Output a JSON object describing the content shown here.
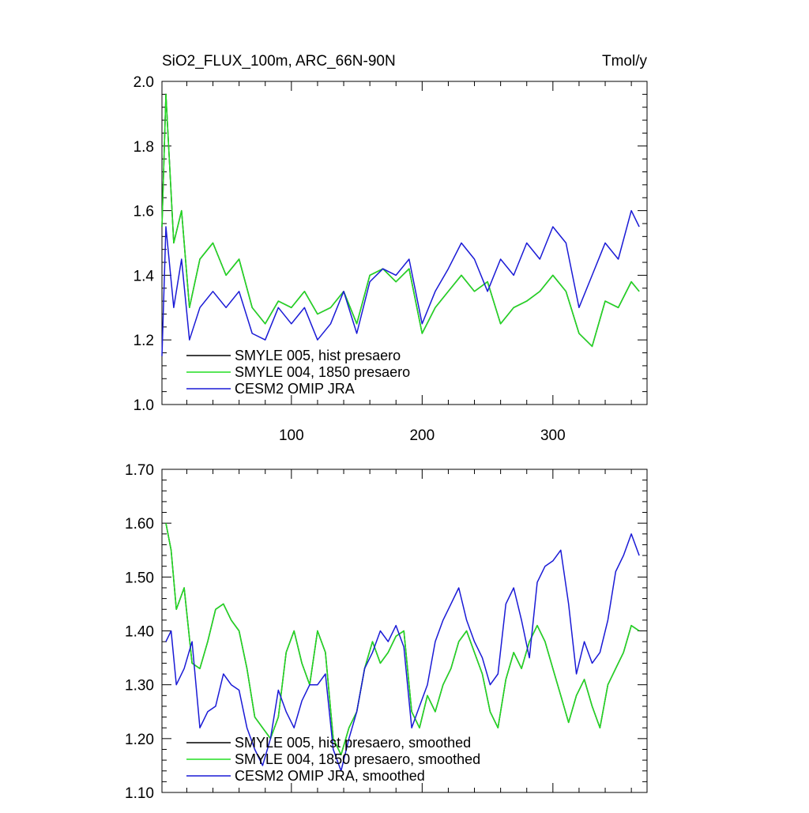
{
  "colors": {
    "black": "#000000",
    "green": "#22dd22",
    "blue": "#1a1ad6"
  },
  "chart_data": [
    {
      "type": "line",
      "title": "SiO2_FLUX_100m, ARC_66N-90N",
      "units": "Tmol/y",
      "xlim": [
        1,
        372
      ],
      "ylim": [
        1.0,
        2.0
      ],
      "xticks": [
        100,
        200,
        300
      ],
      "xtick_labels": [
        "100",
        "200",
        "300"
      ],
      "yticks": [
        1.0,
        1.2,
        1.4,
        1.6,
        1.8,
        2.0
      ],
      "ytick_labels": [
        "1.0",
        "1.2",
        "1.4",
        "1.6",
        "1.8",
        "2.0"
      ],
      "legend": [
        "SMYLE 005, hist presaero",
        "SMYLE 004, 1850 presaero",
        "CESM2 OMIP JRA"
      ],
      "legend_position": "bottom-left",
      "series": [
        {
          "name": "SMYLE 005, hist presaero",
          "color_key": "black",
          "x": [
            1,
            4,
            10,
            16,
            22,
            30,
            40,
            50,
            60,
            70,
            80,
            90,
            100,
            110,
            120,
            130,
            140,
            150,
            160,
            170,
            180,
            190,
            200,
            210,
            220,
            230,
            240,
            250,
            260,
            270,
            280,
            290,
            300,
            310,
            320,
            330,
            340,
            350,
            360,
            366
          ],
          "values": [
            1.55,
            1.96,
            1.5,
            1.6,
            1.3,
            1.45,
            1.5,
            1.4,
            1.45,
            1.3,
            1.25,
            1.32,
            1.3,
            1.35,
            1.28,
            1.3,
            1.35,
            1.25,
            1.4,
            1.42,
            1.38,
            1.42,
            1.22,
            1.3,
            1.35,
            1.4,
            1.35,
            1.38,
            1.25,
            1.3,
            1.32,
            1.35,
            1.4,
            1.35,
            1.22,
            1.18,
            1.32,
            1.3,
            1.38,
            1.35
          ]
        },
        {
          "name": "SMYLE 004, 1850 presaero",
          "color_key": "green",
          "x": [
            1,
            4,
            10,
            16,
            22,
            30,
            40,
            50,
            60,
            70,
            80,
            90,
            100,
            110,
            120,
            130,
            140,
            150,
            160,
            170,
            180,
            190,
            200,
            210,
            220,
            230,
            240,
            250,
            260,
            270,
            280,
            290,
            300,
            310,
            320,
            330,
            340,
            350,
            360,
            366
          ],
          "values": [
            1.55,
            1.96,
            1.5,
            1.6,
            1.3,
            1.45,
            1.5,
            1.4,
            1.45,
            1.3,
            1.25,
            1.32,
            1.3,
            1.35,
            1.28,
            1.3,
            1.35,
            1.25,
            1.4,
            1.42,
            1.38,
            1.42,
            1.22,
            1.3,
            1.35,
            1.4,
            1.35,
            1.38,
            1.25,
            1.3,
            1.32,
            1.35,
            1.4,
            1.35,
            1.22,
            1.18,
            1.32,
            1.3,
            1.38,
            1.35
          ]
        },
        {
          "name": "CESM2 OMIP JRA",
          "color_key": "blue",
          "x": [
            1,
            4,
            10,
            16,
            22,
            30,
            40,
            50,
            60,
            70,
            80,
            90,
            100,
            110,
            120,
            130,
            140,
            150,
            160,
            170,
            180,
            190,
            200,
            210,
            220,
            230,
            240,
            250,
            260,
            270,
            280,
            290,
            300,
            310,
            320,
            330,
            340,
            350,
            360,
            366
          ],
          "values": [
            1.15,
            1.55,
            1.3,
            1.45,
            1.2,
            1.3,
            1.35,
            1.3,
            1.35,
            1.22,
            1.2,
            1.3,
            1.25,
            1.3,
            1.2,
            1.25,
            1.35,
            1.22,
            1.38,
            1.42,
            1.4,
            1.45,
            1.25,
            1.35,
            1.42,
            1.5,
            1.45,
            1.35,
            1.45,
            1.4,
            1.5,
            1.45,
            1.55,
            1.5,
            1.3,
            1.4,
            1.5,
            1.45,
            1.6,
            1.55
          ]
        }
      ]
    },
    {
      "type": "line",
      "title": "",
      "xlim": [
        1,
        372
      ],
      "ylim": [
        1.1,
        1.7
      ],
      "xticks": [
        100,
        200,
        300
      ],
      "xtick_labels": [],
      "yticks": [
        1.1,
        1.2,
        1.3,
        1.4,
        1.5,
        1.6,
        1.7
      ],
      "ytick_labels": [
        "1.10",
        "1.20",
        "1.30",
        "1.40",
        "1.50",
        "1.60",
        "1.70"
      ],
      "legend": [
        "SMYLE 005, hist presaero, smoothed",
        "SMYLE 004, 1850 presaero, smoothed",
        "CESM2 OMIP JRA, smoothed"
      ],
      "legend_position": "bottom-left",
      "series": [
        {
          "name": "SMYLE 005, hist presaero, smoothed",
          "color_key": "black",
          "x": [
            4,
            8,
            12,
            18,
            24,
            30,
            36,
            42,
            48,
            54,
            60,
            66,
            72,
            78,
            84,
            90,
            96,
            102,
            108,
            114,
            120,
            126,
            132,
            138,
            144,
            150,
            156,
            162,
            168,
            174,
            180,
            186,
            192,
            198,
            204,
            210,
            216,
            222,
            228,
            234,
            240,
            246,
            252,
            258,
            264,
            270,
            276,
            282,
            288,
            294,
            300,
            306,
            312,
            318,
            324,
            330,
            336,
            342,
            348,
            354,
            360,
            366
          ],
          "values": [
            1.6,
            1.55,
            1.44,
            1.48,
            1.34,
            1.33,
            1.38,
            1.44,
            1.45,
            1.42,
            1.4,
            1.33,
            1.24,
            1.22,
            1.2,
            1.24,
            1.36,
            1.4,
            1.34,
            1.3,
            1.4,
            1.36,
            1.2,
            1.17,
            1.22,
            1.25,
            1.33,
            1.38,
            1.34,
            1.36,
            1.39,
            1.4,
            1.25,
            1.22,
            1.28,
            1.25,
            1.3,
            1.33,
            1.38,
            1.4,
            1.36,
            1.32,
            1.25,
            1.22,
            1.31,
            1.36,
            1.33,
            1.38,
            1.41,
            1.38,
            1.33,
            1.28,
            1.23,
            1.28,
            1.31,
            1.26,
            1.22,
            1.3,
            1.33,
            1.36,
            1.41,
            1.4
          ]
        },
        {
          "name": "SMYLE 004, 1850 presaero, smoothed",
          "color_key": "green",
          "x": [
            4,
            8,
            12,
            18,
            24,
            30,
            36,
            42,
            48,
            54,
            60,
            66,
            72,
            78,
            84,
            90,
            96,
            102,
            108,
            114,
            120,
            126,
            132,
            138,
            144,
            150,
            156,
            162,
            168,
            174,
            180,
            186,
            192,
            198,
            204,
            210,
            216,
            222,
            228,
            234,
            240,
            246,
            252,
            258,
            264,
            270,
            276,
            282,
            288,
            294,
            300,
            306,
            312,
            318,
            324,
            330,
            336,
            342,
            348,
            354,
            360,
            366
          ],
          "values": [
            1.6,
            1.55,
            1.44,
            1.48,
            1.34,
            1.33,
            1.38,
            1.44,
            1.45,
            1.42,
            1.4,
            1.33,
            1.24,
            1.22,
            1.2,
            1.24,
            1.36,
            1.4,
            1.34,
            1.3,
            1.4,
            1.36,
            1.2,
            1.17,
            1.22,
            1.25,
            1.33,
            1.38,
            1.34,
            1.36,
            1.39,
            1.4,
            1.25,
            1.22,
            1.28,
            1.25,
            1.3,
            1.33,
            1.38,
            1.4,
            1.36,
            1.32,
            1.25,
            1.22,
            1.31,
            1.36,
            1.33,
            1.38,
            1.41,
            1.38,
            1.33,
            1.28,
            1.23,
            1.28,
            1.31,
            1.26,
            1.22,
            1.3,
            1.33,
            1.36,
            1.41,
            1.4
          ]
        },
        {
          "name": "CESM2 OMIP JRA, smoothed",
          "color_key": "blue",
          "x": [
            4,
            8,
            12,
            18,
            24,
            30,
            36,
            42,
            48,
            54,
            60,
            66,
            72,
            78,
            84,
            90,
            96,
            102,
            108,
            114,
            120,
            126,
            132,
            138,
            144,
            150,
            156,
            162,
            168,
            174,
            180,
            186,
            192,
            198,
            204,
            210,
            216,
            222,
            228,
            234,
            240,
            246,
            252,
            258,
            264,
            270,
            276,
            282,
            288,
            294,
            300,
            306,
            312,
            318,
            324,
            330,
            336,
            342,
            348,
            354,
            360,
            366
          ],
          "values": [
            1.38,
            1.4,
            1.3,
            1.33,
            1.38,
            1.22,
            1.25,
            1.26,
            1.32,
            1.3,
            1.29,
            1.22,
            1.18,
            1.15,
            1.2,
            1.29,
            1.25,
            1.22,
            1.27,
            1.3,
            1.3,
            1.32,
            1.18,
            1.14,
            1.2,
            1.25,
            1.33,
            1.36,
            1.4,
            1.38,
            1.41,
            1.37,
            1.22,
            1.26,
            1.3,
            1.38,
            1.42,
            1.45,
            1.48,
            1.42,
            1.38,
            1.35,
            1.3,
            1.32,
            1.45,
            1.48,
            1.42,
            1.35,
            1.49,
            1.52,
            1.53,
            1.55,
            1.45,
            1.32,
            1.38,
            1.34,
            1.36,
            1.42,
            1.51,
            1.54,
            1.58,
            1.54
          ]
        }
      ]
    }
  ]
}
